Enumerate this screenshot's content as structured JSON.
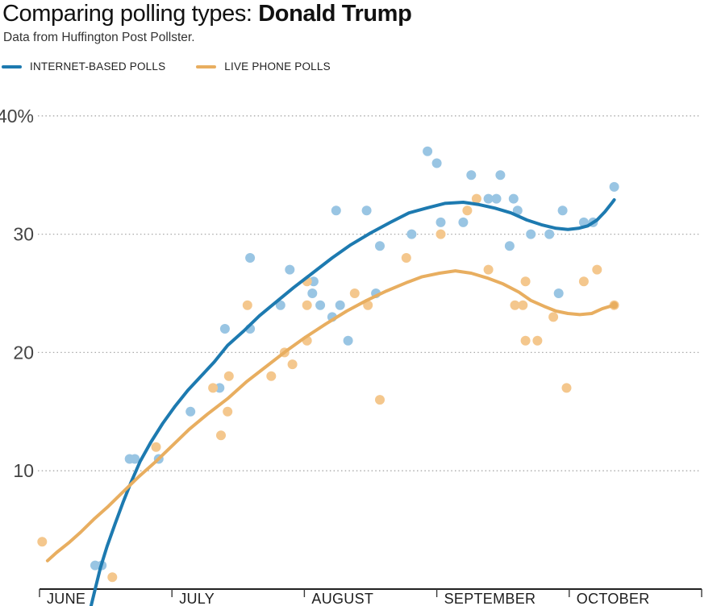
{
  "chart_data": {
    "type": "scatter",
    "title_prefix": "Comparing polling types: ",
    "title_bold": "Donald Trump",
    "subtitle": "Data from Huffington Post Pollster.",
    "x_unit": "months since June 1 (0 = Jun 1, 1 = Jul 1, 2 = Aug 1, 3 = Sep 1, 4 = Oct 1)",
    "y_unit": "percent",
    "legend_position": "top-left",
    "x_axis": {
      "tick_positions": [
        0,
        1,
        2,
        3,
        4,
        5
      ],
      "tick_labels": [
        "JUNE",
        "JULY",
        "AUGUST",
        "SEPTEMBER",
        "OCTOBER"
      ],
      "range": [
        0,
        5
      ]
    },
    "y_axis": {
      "ticks": [
        10,
        20,
        30,
        40
      ],
      "tick_labels": [
        "10",
        "20",
        "30",
        "40%"
      ],
      "range": [
        0,
        42
      ],
      "grid": "dotted horizontal lines"
    },
    "series": [
      {
        "name": "INTERNET-BASED POLLS",
        "line_color": "#1d7ab0",
        "point_color": "#99c5e3",
        "points": [
          [
            0.42,
            2
          ],
          [
            0.47,
            2
          ],
          [
            0.68,
            11
          ],
          [
            0.72,
            11
          ],
          [
            0.9,
            11
          ],
          [
            1.14,
            15
          ],
          [
            1.36,
            17
          ],
          [
            1.4,
            22
          ],
          [
            1.59,
            22
          ],
          [
            1.59,
            28
          ],
          [
            1.82,
            24
          ],
          [
            1.89,
            27
          ],
          [
            2.06,
            25
          ],
          [
            2.07,
            26
          ],
          [
            2.12,
            24
          ],
          [
            2.21,
            23
          ],
          [
            2.24,
            32
          ],
          [
            2.27,
            24
          ],
          [
            2.33,
            21
          ],
          [
            2.47,
            32
          ],
          [
            2.54,
            25
          ],
          [
            2.57,
            29
          ],
          [
            2.81,
            30
          ],
          [
            2.93,
            37
          ],
          [
            3.0,
            36
          ],
          [
            3.03,
            31
          ],
          [
            3.2,
            31
          ],
          [
            3.26,
            35
          ],
          [
            3.39,
            33
          ],
          [
            3.45,
            33
          ],
          [
            3.48,
            35
          ],
          [
            3.55,
            29
          ],
          [
            3.58,
            33
          ],
          [
            3.61,
            32
          ],
          [
            3.71,
            30
          ],
          [
            3.85,
            30
          ],
          [
            3.92,
            25
          ],
          [
            3.95,
            32
          ],
          [
            4.11,
            31
          ],
          [
            4.18,
            31
          ],
          [
            4.34,
            34
          ]
        ],
        "trend": [
          [
            0.39,
            -1.4
          ],
          [
            0.42,
            0
          ],
          [
            0.46,
            1.8
          ],
          [
            0.51,
            3.6
          ],
          [
            0.57,
            5.5
          ],
          [
            0.63,
            7.3
          ],
          [
            0.69,
            9.0
          ],
          [
            0.76,
            10.8
          ],
          [
            0.84,
            12.4
          ],
          [
            0.93,
            14.0
          ],
          [
            1.02,
            15.4
          ],
          [
            1.12,
            16.8
          ],
          [
            1.22,
            18.0
          ],
          [
            1.32,
            19.2
          ],
          [
            1.42,
            20.6
          ],
          [
            1.54,
            21.8
          ],
          [
            1.66,
            23.1
          ],
          [
            1.79,
            24.3
          ],
          [
            1.92,
            25.5
          ],
          [
            2.06,
            26.7
          ],
          [
            2.21,
            28.0
          ],
          [
            2.35,
            29.1
          ],
          [
            2.5,
            30.1
          ],
          [
            2.65,
            31.0
          ],
          [
            2.79,
            31.8
          ],
          [
            2.92,
            32.2
          ],
          [
            3.06,
            32.6
          ],
          [
            3.2,
            32.7
          ],
          [
            3.32,
            32.5
          ],
          [
            3.44,
            32.2
          ],
          [
            3.56,
            31.8
          ],
          [
            3.68,
            31.2
          ],
          [
            3.79,
            30.8
          ],
          [
            3.9,
            30.5
          ],
          [
            3.99,
            30.4
          ],
          [
            4.07,
            30.5
          ],
          [
            4.14,
            30.7
          ],
          [
            4.21,
            31.2
          ],
          [
            4.27,
            31.9
          ],
          [
            4.32,
            32.6
          ],
          [
            4.34,
            32.9
          ]
        ]
      },
      {
        "name": "LIVE PHONE POLLS",
        "line_color": "#e8ae60",
        "point_color": "#f4c78d",
        "end_dot": true,
        "points": [
          [
            0.02,
            4
          ],
          [
            0.55,
            1
          ],
          [
            0.88,
            12
          ],
          [
            1.31,
            17
          ],
          [
            1.37,
            13
          ],
          [
            1.42,
            15
          ],
          [
            1.43,
            18
          ],
          [
            1.57,
            24
          ],
          [
            1.75,
            18
          ],
          [
            1.85,
            20
          ],
          [
            1.91,
            19
          ],
          [
            2.02,
            26
          ],
          [
            2.02,
            24
          ],
          [
            2.02,
            21
          ],
          [
            2.38,
            25
          ],
          [
            2.48,
            24
          ],
          [
            2.57,
            16
          ],
          [
            2.77,
            28
          ],
          [
            3.03,
            30
          ],
          [
            3.23,
            32
          ],
          [
            3.3,
            33
          ],
          [
            3.39,
            27
          ],
          [
            3.59,
            24
          ],
          [
            3.65,
            24
          ],
          [
            3.67,
            26
          ],
          [
            3.67,
            21
          ],
          [
            3.76,
            21
          ],
          [
            3.88,
            23
          ],
          [
            3.98,
            17
          ],
          [
            4.11,
            26
          ],
          [
            4.21,
            27
          ],
          [
            4.34,
            24
          ]
        ],
        "trend": [
          [
            0.06,
            2.4
          ],
          [
            0.13,
            3.1
          ],
          [
            0.22,
            3.9
          ],
          [
            0.31,
            4.8
          ],
          [
            0.41,
            5.9
          ],
          [
            0.52,
            7.0
          ],
          [
            0.63,
            8.2
          ],
          [
            0.75,
            9.5
          ],
          [
            0.87,
            10.7
          ],
          [
            1.0,
            12.1
          ],
          [
            1.13,
            13.5
          ],
          [
            1.27,
            14.8
          ],
          [
            1.42,
            16.1
          ],
          [
            1.56,
            17.5
          ],
          [
            1.71,
            18.8
          ],
          [
            1.86,
            20.1
          ],
          [
            2.01,
            21.3
          ],
          [
            2.16,
            22.4
          ],
          [
            2.32,
            23.5
          ],
          [
            2.47,
            24.4
          ],
          [
            2.62,
            25.2
          ],
          [
            2.77,
            25.9
          ],
          [
            2.89,
            26.4
          ],
          [
            3.02,
            26.7
          ],
          [
            3.14,
            26.9
          ],
          [
            3.26,
            26.7
          ],
          [
            3.38,
            26.3
          ],
          [
            3.5,
            25.8
          ],
          [
            3.62,
            25.1
          ],
          [
            3.71,
            24.4
          ],
          [
            3.81,
            23.9
          ],
          [
            3.9,
            23.5
          ],
          [
            3.99,
            23.3
          ],
          [
            4.08,
            23.2
          ],
          [
            4.17,
            23.3
          ],
          [
            4.25,
            23.7
          ],
          [
            4.31,
            23.9
          ],
          [
            4.34,
            24.0
          ]
        ]
      }
    ]
  }
}
